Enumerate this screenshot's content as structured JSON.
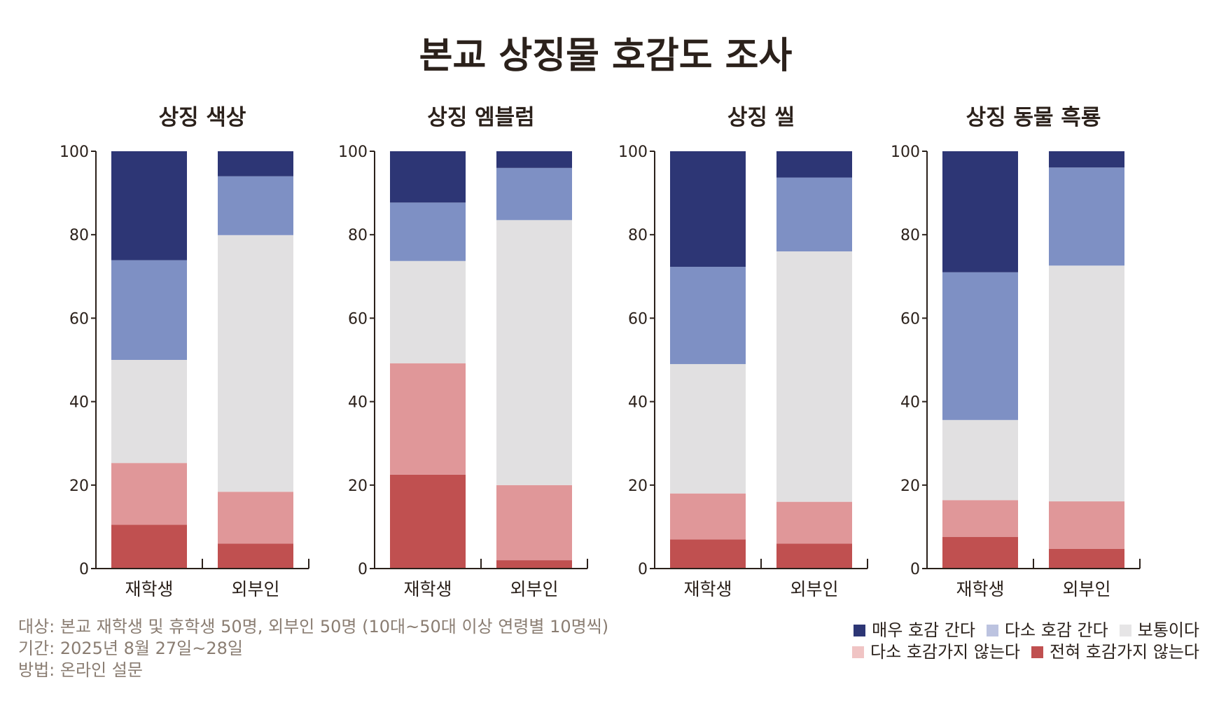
{
  "chart_data": {
    "type": "bar",
    "stacked": true,
    "title": "본교 상징물 호감도 조사",
    "ylim": [
      0,
      100
    ],
    "yticks": [
      0,
      20,
      40,
      60,
      80,
      100
    ],
    "categories": [
      "재학생",
      "외부인"
    ],
    "series_names": [
      "전혀 호감가지 않는다",
      "다소 호감가지 않는다",
      "보통이다",
      "다소 호감 간다",
      "매우 호감 간다"
    ],
    "colors": {
      "전혀 호감가지 않는다": "#c05050",
      "다소 호감가지 않는다": "#e09799",
      "보통이다": "#e1e0e1",
      "다소 호감 간다": "#7e90c4",
      "매우 호감 간다": "#2d3675",
      "다소 호감 간다 (legend)": "#bcc3e0",
      "다소 호감가지 않는다 (legend)": "#f0c4c4"
    },
    "panels": [
      {
        "subtitle": "상징 색상",
        "bars": [
          {
            "category": "재학생",
            "values": [
              10.5,
              14.8,
              24.7,
              23.9,
              26.1
            ]
          },
          {
            "category": "외부인",
            "values": [
              6.0,
              12.4,
              61.5,
              14.1,
              6.0
            ]
          }
        ]
      },
      {
        "subtitle": "상징 엠블럼",
        "bars": [
          {
            "category": "재학생",
            "values": [
              22.5,
              26.7,
              24.5,
              14.0,
              12.3
            ]
          },
          {
            "category": "외부인",
            "values": [
              2.0,
              18.0,
              63.5,
              12.5,
              4.0
            ]
          }
        ]
      },
      {
        "subtitle": "상징 씰",
        "bars": [
          {
            "category": "재학생",
            "values": [
              7.0,
              11.0,
              31.0,
              23.3,
              27.7
            ]
          },
          {
            "category": "외부인",
            "values": [
              6.0,
              10.0,
              60.0,
              17.7,
              6.3
            ]
          }
        ]
      },
      {
        "subtitle": "상징 동물 흑룡",
        "bars": [
          {
            "category": "재학생",
            "values": [
              7.6,
              8.8,
              19.2,
              35.4,
              29.0
            ]
          },
          {
            "category": "외부인",
            "values": [
              4.7,
              11.4,
              56.5,
              23.5,
              3.9
            ]
          }
        ]
      }
    ]
  },
  "footnotes": [
    "대상: 본교 재학생 및 휴학생 50명, 외부인 50명 (10대~50대 이상 연령별 10명씩)",
    "기간: 2025년 8월 27일~28일",
    "방법: 온라인 설문"
  ],
  "legend": {
    "row1": [
      {
        "label": "매우 호감 간다",
        "color": "#2d3675"
      },
      {
        "label": "다소 호감 간다",
        "color": "#bcc3e0"
      },
      {
        "label": "보통이다",
        "color": "#e6e5e6"
      }
    ],
    "row2": [
      {
        "label": "다소 호감가지 않는다",
        "color": "#f0c4c4"
      },
      {
        "label": "전혀 호감가지 않는다",
        "color": "#c05050"
      }
    ]
  }
}
